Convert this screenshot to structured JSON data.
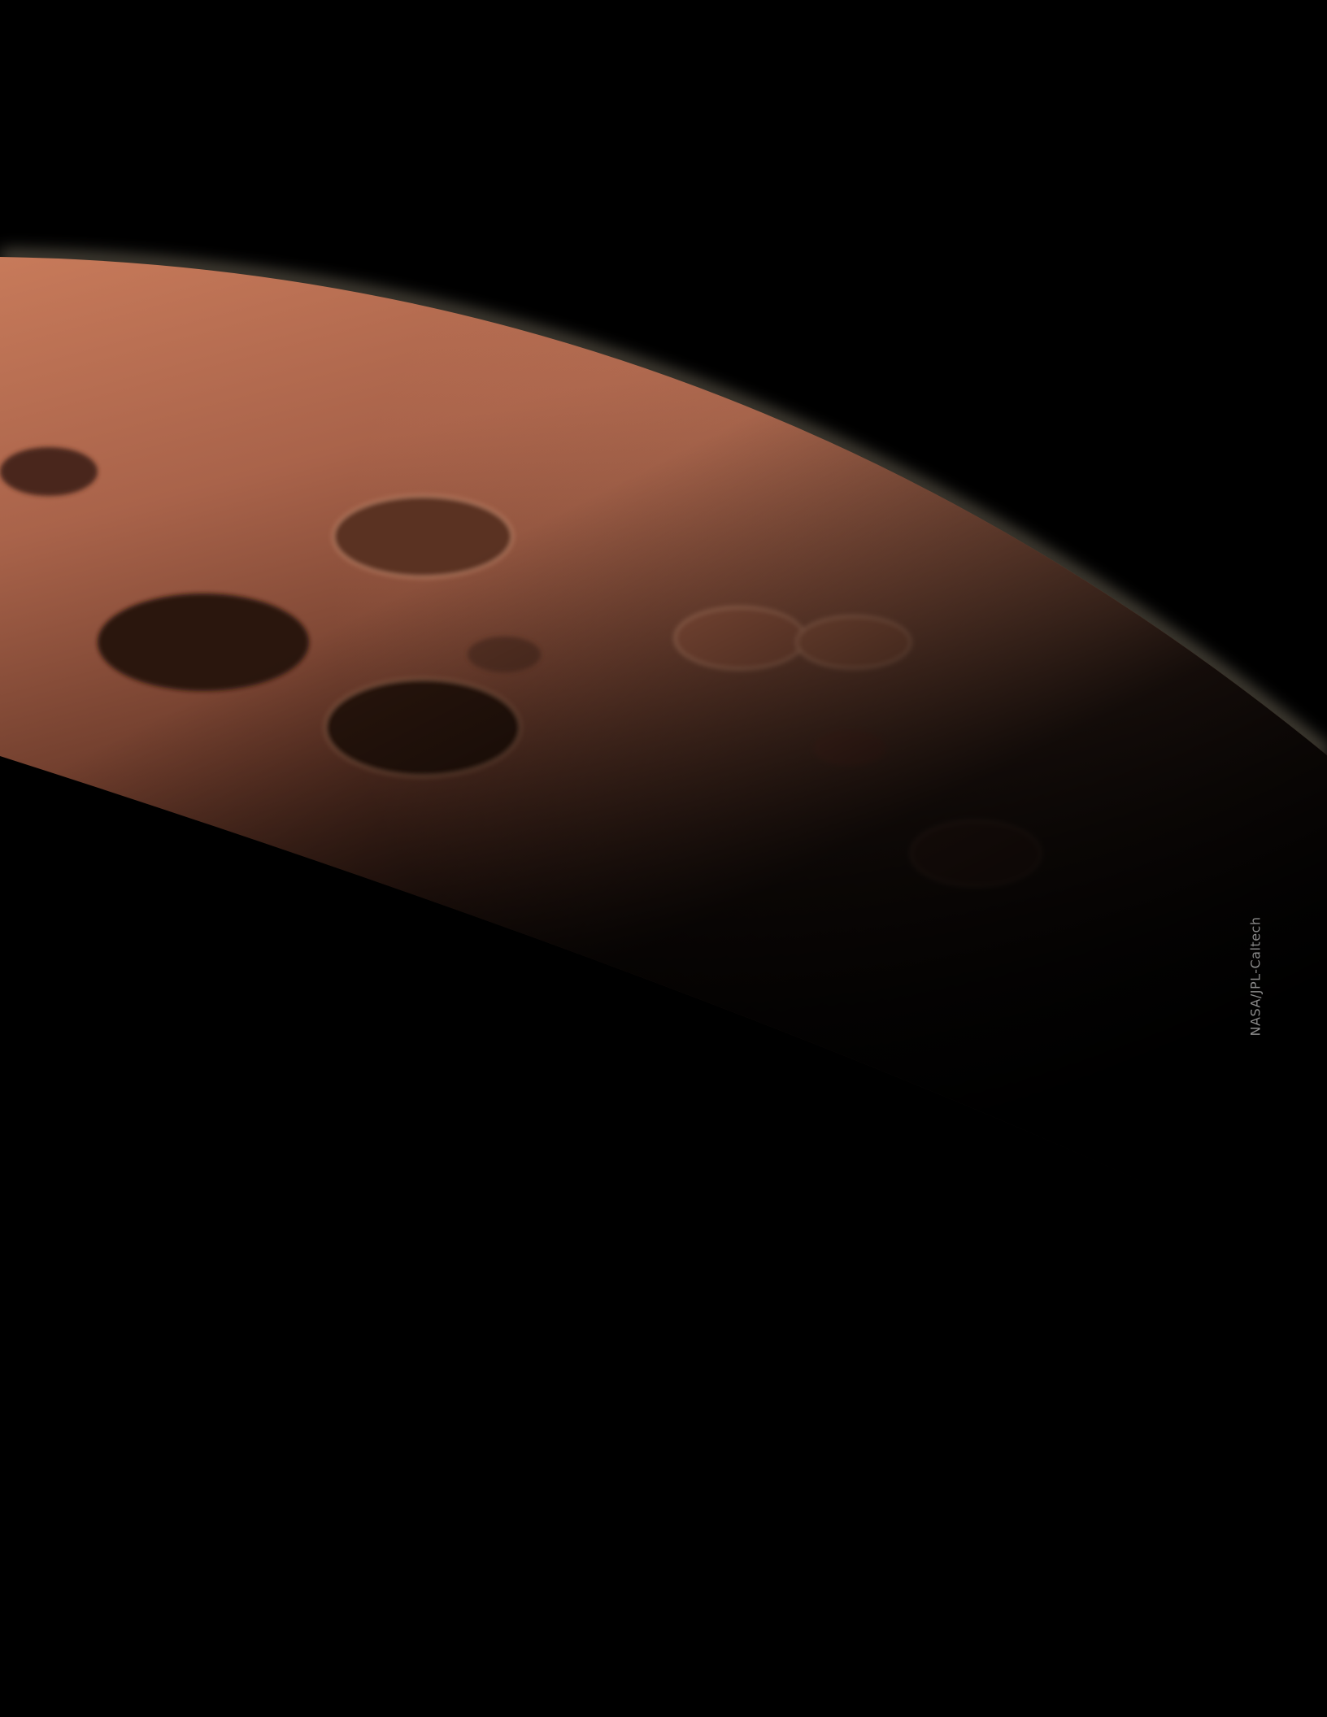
{
  "credit": "NASA/JPL-Caltech"
}
